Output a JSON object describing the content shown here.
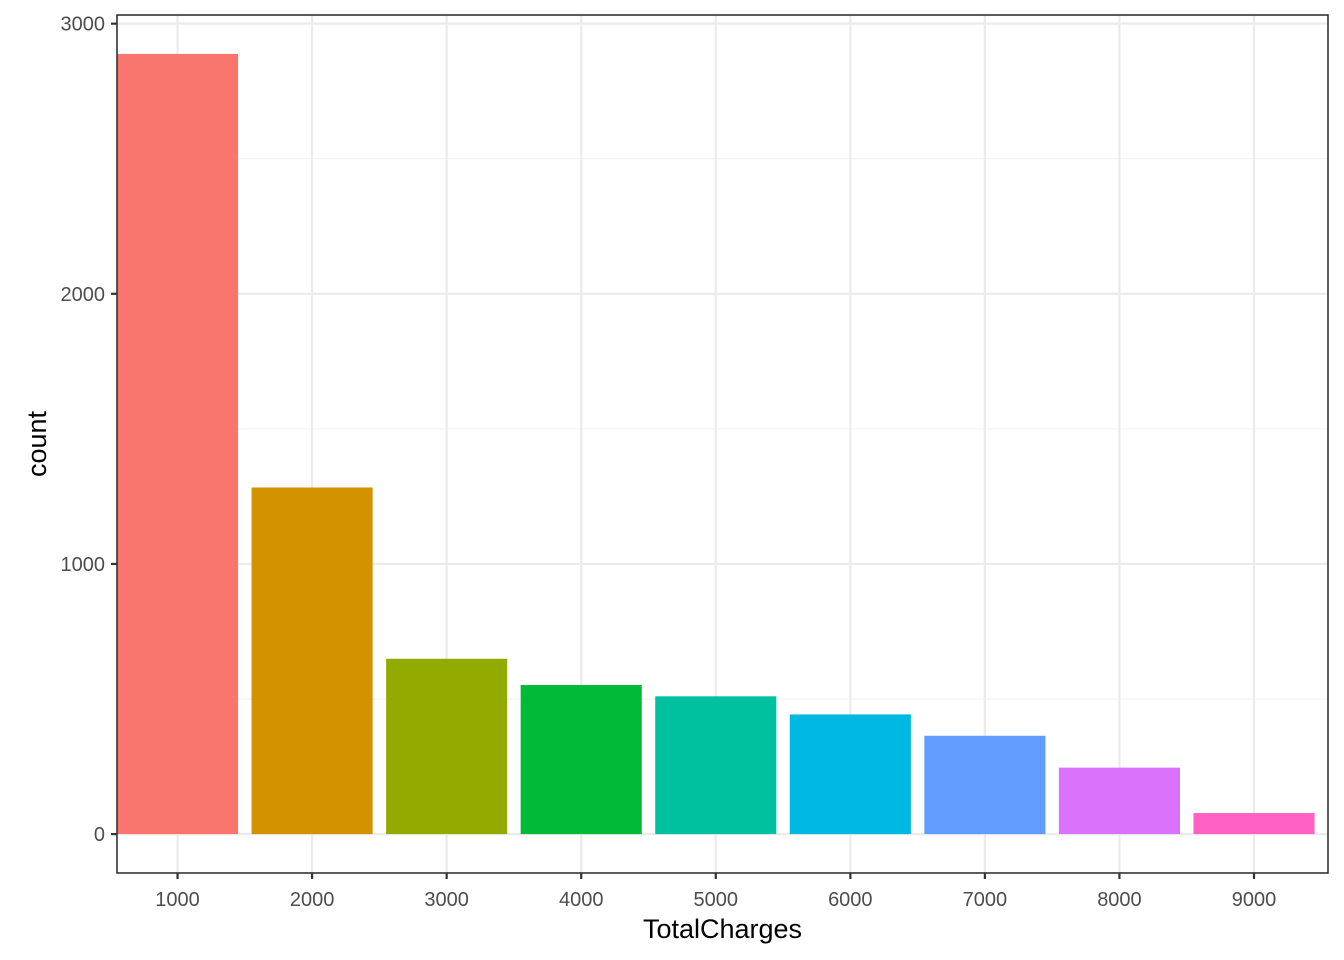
{
  "chart_data": {
    "type": "bar",
    "title": "",
    "xlabel": "TotalCharges",
    "ylabel": "count",
    "categories": [
      "1000",
      "2000",
      "3000",
      "4000",
      "5000",
      "6000",
      "7000",
      "8000",
      "9000"
    ],
    "x": [
      1000,
      2000,
      3000,
      4000,
      5000,
      6000,
      7000,
      8000,
      9000
    ],
    "values": [
      2888,
      1283,
      649,
      552,
      510,
      443,
      364,
      246,
      78
    ],
    "colors": [
      "#F8766D",
      "#D39200",
      "#93AA00",
      "#00BA38",
      "#00C19F",
      "#00B9E3",
      "#619CFF",
      "#DB72FB",
      "#FF61C3"
    ],
    "xlim": [
      550,
      9550
    ],
    "ylim": [
      -144,
      3032
    ],
    "yticks": [
      0,
      1000,
      2000,
      3000
    ],
    "ytick_labels": [
      "0",
      "1000",
      "2000",
      "3000"
    ],
    "grid": true,
    "legend": "none",
    "theme": "bw"
  }
}
